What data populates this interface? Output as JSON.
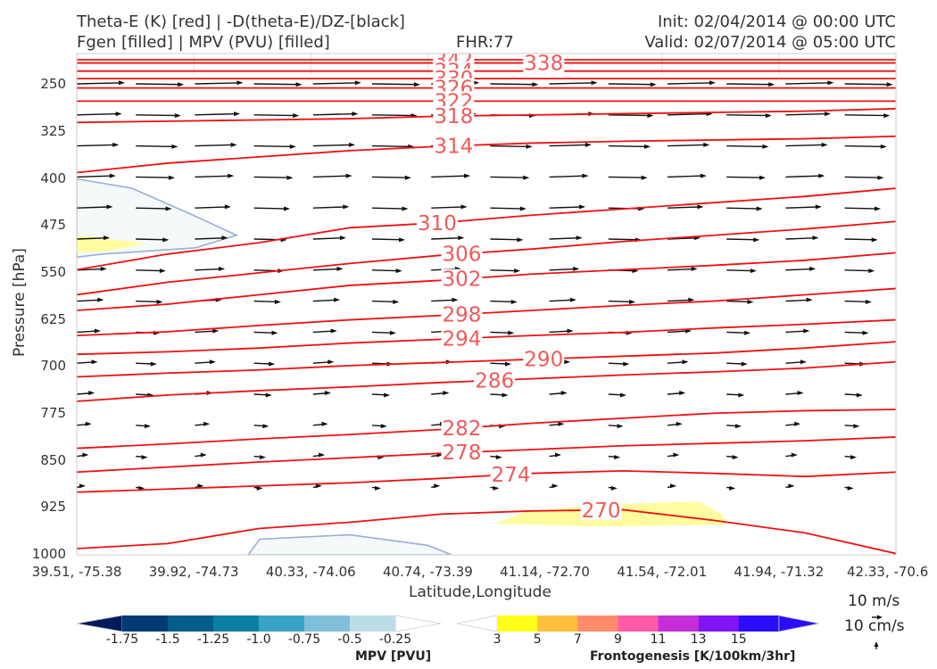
{
  "titles": {
    "left_line1": "Theta-E (K) [red] | -D(theta-E)/DZ-[black]",
    "left_line2": "Fgen [filled] | MPV (PVU) [filled]",
    "center": "FHR:77",
    "right_line1": "Init: 02/04/2014 @ 00:00 UTC",
    "right_line2": "Valid: 02/07/2014 @ 05:00 UTC"
  },
  "chart_data": {
    "type": "cross-section",
    "xlabel": "Latitude,Longitude",
    "ylabel": "Pressure [hPa]",
    "x_ticks": [
      "39.51, -75.38",
      "39.92, -74.73",
      "40.33, -74.06",
      "40.74, -73.39",
      "41.14, -72.70",
      "41.54, -72.01",
      "41.94, -71.32",
      "42.33, -70.6"
    ],
    "y_ticks": [
      250,
      325,
      400,
      475,
      550,
      625,
      700,
      775,
      850,
      925,
      1000
    ],
    "ylim": [
      200,
      1000
    ],
    "theta_e_color": "#ee1111",
    "theta_e_label_color": "#f05a5a",
    "theta_e_contours": [
      {
        "label": "342",
        "y": [
          210,
          210,
          210,
          210,
          210,
          210,
          210,
          210,
          210,
          210
        ]
      },
      {
        "label": "338",
        "y": [
          215,
          215,
          215,
          215,
          215,
          215,
          215,
          215,
          215,
          215
        ]
      },
      {
        "label": "334",
        "y": [
          228,
          228,
          228,
          228,
          228,
          228,
          228,
          228,
          228,
          228
        ]
      },
      {
        "label": "330",
        "y": [
          240,
          240,
          240,
          240,
          240,
          240,
          240,
          240,
          240,
          240
        ]
      },
      {
        "label": "326",
        "y": [
          255,
          255,
          255,
          255,
          255,
          255,
          255,
          255,
          255,
          255
        ]
      },
      {
        "label": "322",
        "y": [
          276,
          276,
          276,
          276,
          276,
          276,
          276,
          276,
          276,
          276
        ]
      },
      {
        "label": "318",
        "y": [
          310,
          308,
          306,
          304,
          300,
          298,
          296,
          294,
          292,
          288
        ]
      },
      {
        "label": "314",
        "y": [
          390,
          375,
          365,
          355,
          348,
          343,
          340,
          338,
          336,
          332
        ]
      },
      {
        "label": "310",
        "y": [
          545,
          520,
          502,
          478,
          470,
          458,
          448,
          438,
          428,
          415
        ]
      },
      {
        "label": "306",
        "y": [
          585,
          565,
          550,
          535,
          522,
          512,
          500,
          490,
          480,
          468
        ]
      },
      {
        "label": "302",
        "y": [
          610,
          600,
          585,
          570,
          562,
          552,
          545,
          538,
          530,
          518
        ]
      },
      {
        "label": "298",
        "y": [
          650,
          644,
          634,
          625,
          618,
          610,
          602,
          595,
          585,
          575
        ]
      },
      {
        "label": "294",
        "y": [
          680,
          676,
          670,
          662,
          656,
          650,
          645,
          638,
          632,
          625
        ]
      },
      {
        "label": "290",
        "y": [
          716,
          710,
          705,
          698,
          693,
          688,
          683,
          678,
          670,
          660
        ]
      },
      {
        "label": "286",
        "y": [
          755,
          745,
          738,
          732,
          725,
          719,
          713,
          708,
          702,
          692
        ]
      },
      {
        "label": "282",
        "y": [
          830,
          823,
          815,
          808,
          800,
          790,
          782,
          774,
          770,
          768
        ]
      },
      {
        "label": "278",
        "y": [
          868,
          860,
          852,
          845,
          838,
          832,
          826,
          822,
          818,
          812
        ]
      },
      {
        "label": "274",
        "y": [
          900,
          895,
          890,
          885,
          878,
          870,
          866,
          870,
          875,
          868
        ]
      },
      {
        "label": "270",
        "y": [
          990,
          982,
          958,
          948,
          935,
          930,
          928,
          945,
          965,
          998
        ]
      }
    ],
    "mpv_shaded": [
      {
        "level": -0.25,
        "points": [
          [
            39.51,
            400
          ],
          [
            39.7,
            415
          ],
          [
            39.92,
            460
          ],
          [
            40.06,
            490
          ],
          [
            39.92,
            510
          ],
          [
            39.6,
            520
          ],
          [
            39.51,
            525
          ]
        ]
      },
      {
        "level": -0.25,
        "points": [
          [
            40.1,
            1000
          ],
          [
            40.14,
            975
          ],
          [
            40.45,
            968
          ],
          [
            40.72,
            985
          ],
          [
            40.8,
            1000
          ]
        ]
      }
    ],
    "fgen_shaded": [
      {
        "level": 3,
        "points": [
          [
            39.51,
            490
          ],
          [
            39.75,
            503
          ],
          [
            39.62,
            515
          ],
          [
            39.51,
            518
          ]
        ]
      },
      {
        "level": 3,
        "points": [
          [
            40.95,
            950
          ],
          [
            41.05,
            932
          ],
          [
            41.3,
            920
          ],
          [
            41.65,
            915
          ],
          [
            41.73,
            935
          ],
          [
            41.75,
            952
          ],
          [
            41.3,
            955
          ]
        ]
      }
    ],
    "mpv_colorbar": {
      "label": "MPV [PVU]",
      "ticks": [
        "-1.75",
        "-1.5",
        "-1.25",
        "-1.0",
        "-0.75",
        "-0.5",
        "-0.25"
      ],
      "colors": [
        "#001a5e",
        "#023a75",
        "#065d8c",
        "#0d7fa3",
        "#3aa3c5",
        "#7fbfd8",
        "#bcdde8",
        "#ffffff"
      ]
    },
    "fgen_colorbar": {
      "label": "Frontogenesis [K/100km/3hr]",
      "ticks": [
        "3",
        "5",
        "7",
        "9",
        "11",
        "13",
        "15"
      ],
      "colors": [
        "#ffffff",
        "#ffff1a",
        "#ffc040",
        "#ff8b6d",
        "#ff5ba9",
        "#c52fd8",
        "#7f15f2",
        "#2a0dfa",
        "#2a0dfa"
      ]
    },
    "vector_key": {
      "horizontal": "10 m/s",
      "vertical": "10 cm/s"
    }
  }
}
